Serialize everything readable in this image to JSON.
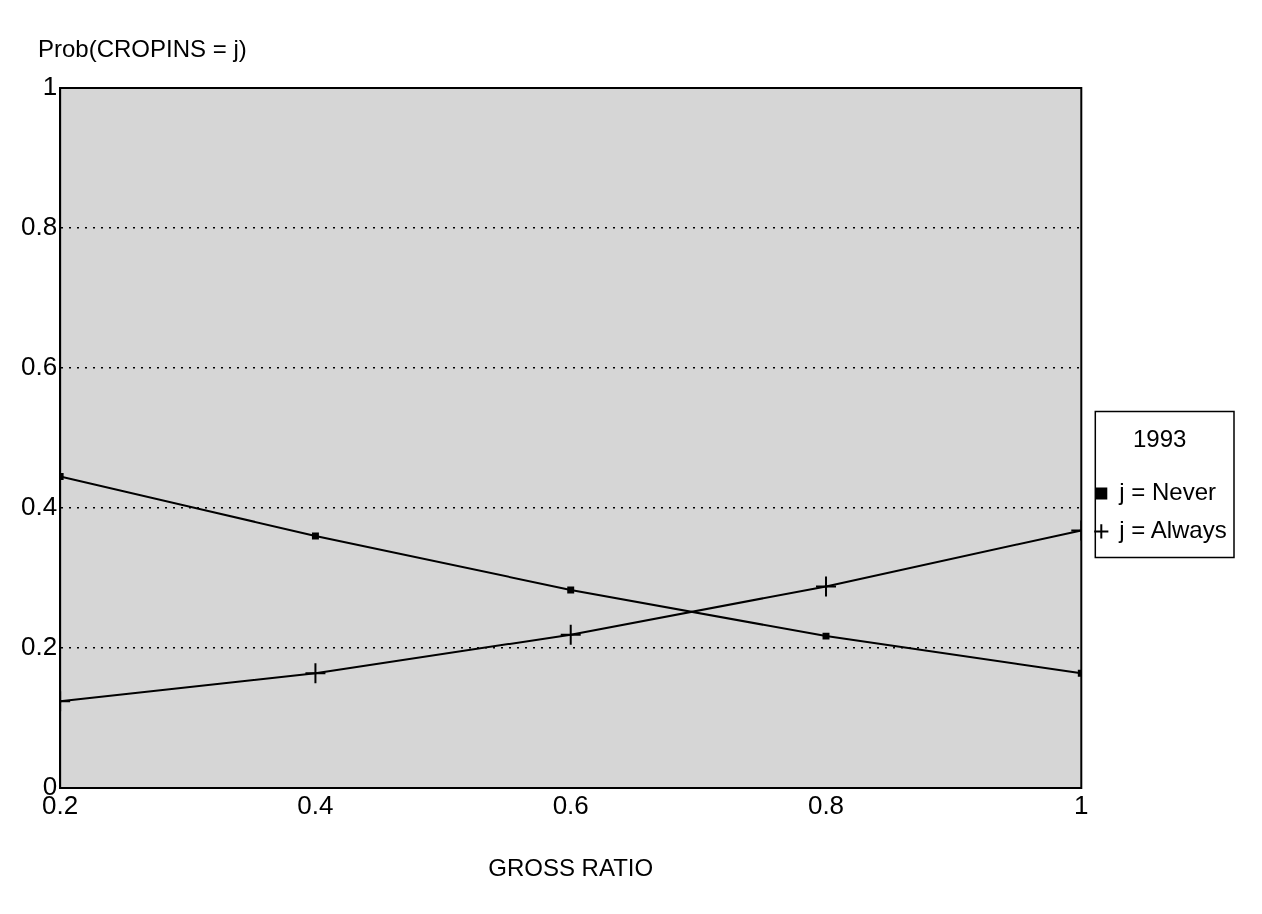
{
  "chart_data": {
    "type": "line",
    "ylabel": "Prob(CROPINS = j)",
    "xlabel": "GROSS RATIO",
    "legend_title": "1993",
    "x": [
      0.2,
      0.4,
      0.6,
      0.8,
      1
    ],
    "series": [
      {
        "name": "j = Never",
        "color": "#000000",
        "marker": "square",
        "values": [
          0.445,
          0.36,
          0.283,
          0.217,
          0.164
        ]
      },
      {
        "name": "j = Always",
        "color": "#000000",
        "marker": "cross",
        "values": [
          0.124,
          0.164,
          0.219,
          0.288,
          0.368
        ]
      }
    ],
    "xlim": [
      0.2,
      1
    ],
    "xticks": [
      0.2,
      0.4,
      0.6,
      0.8,
      1
    ],
    "ylim": [
      0,
      1
    ],
    "yticks": [
      0,
      0.2,
      0.4,
      0.6,
      0.8,
      1
    ],
    "grid": "y",
    "legend": "right",
    "line_style": "solid"
  }
}
